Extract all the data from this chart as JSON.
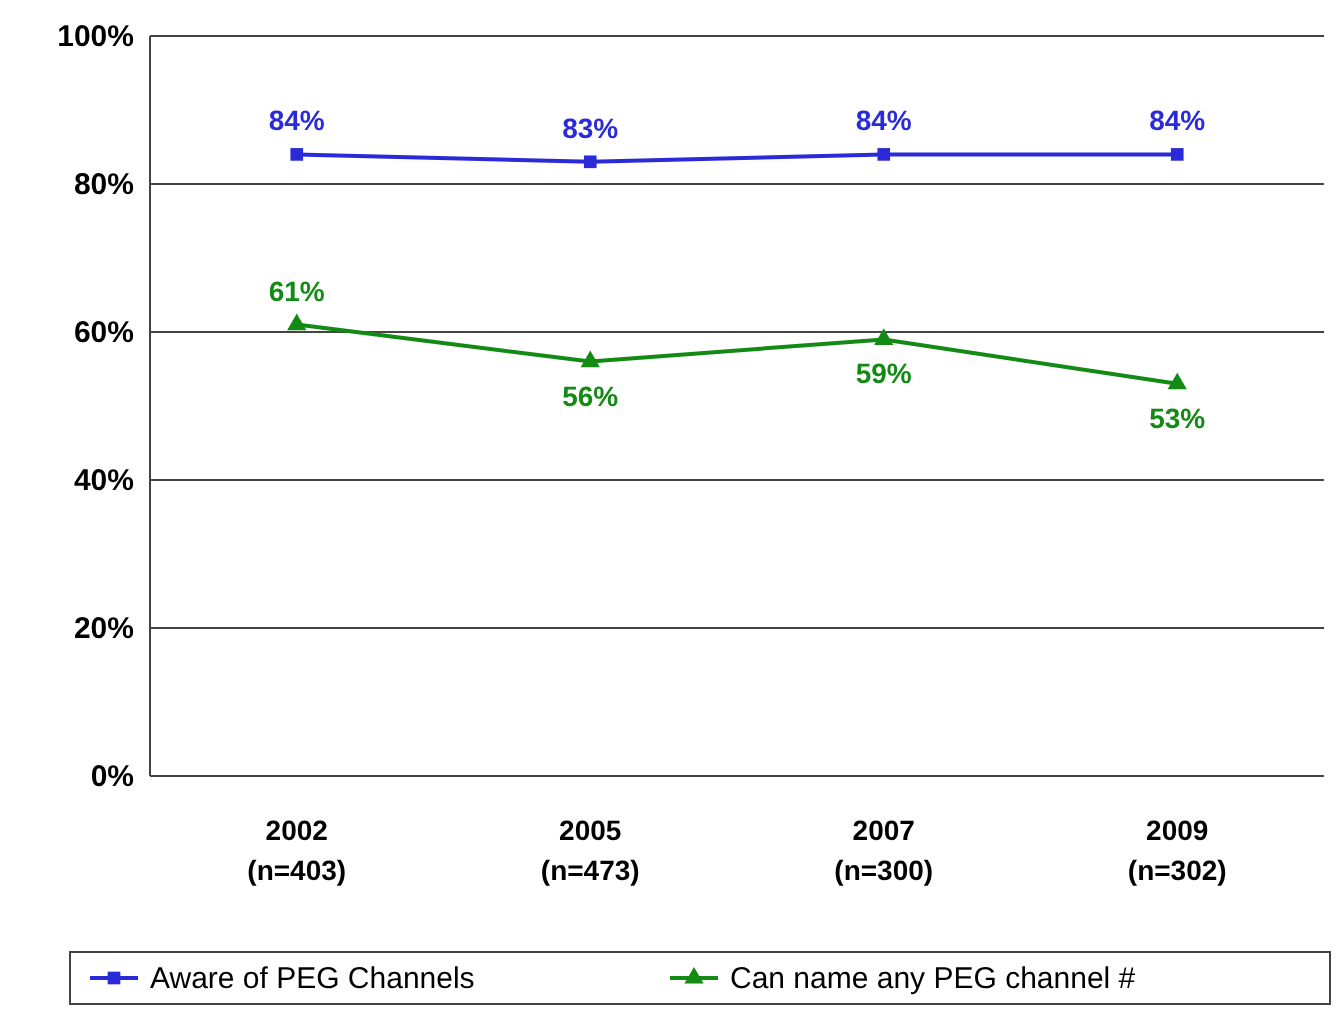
{
  "chart_data": {
    "type": "line",
    "categories": [
      "2002\n(n=403)",
      "2005\n(n=473)",
      "2007\n(n=300)",
      "2009\n(n=302)"
    ],
    "series": [
      {
        "name": "Aware of PEG Channels",
        "color": "#2a2ad8",
        "values": [
          84,
          83,
          84,
          84
        ],
        "value_labels": [
          "84%",
          "83%",
          "84%",
          "84%"
        ],
        "marker": "square"
      },
      {
        "name": "Can name any PEG channel #",
        "color": "#138a13",
        "values": [
          61,
          56,
          59,
          53
        ],
        "value_labels": [
          "61%",
          "56%",
          "59%",
          "53%"
        ],
        "marker": "triangle"
      }
    ],
    "ylim": [
      0,
      100
    ],
    "yticks": [
      {
        "value": 0,
        "label": "0%"
      },
      {
        "value": 20,
        "label": "20%"
      },
      {
        "value": 40,
        "label": "40%"
      },
      {
        "value": 60,
        "label": "60%"
      },
      {
        "value": 80,
        "label": "80%"
      },
      {
        "value": 100,
        "label": "100%"
      }
    ],
    "grid": "y",
    "legend": "bottom"
  }
}
